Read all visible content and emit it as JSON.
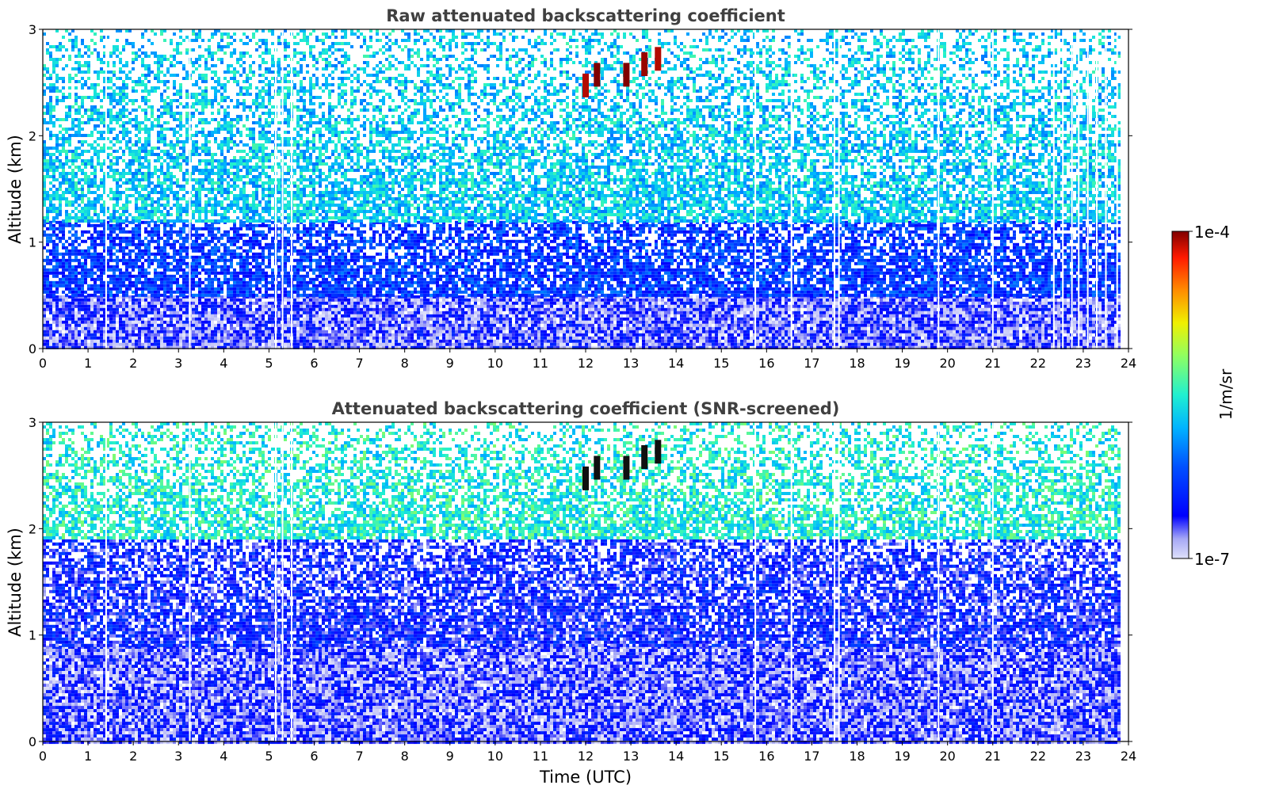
{
  "figure": {
    "xlabel": "Time (UTC)",
    "colorbar": {
      "label": "1/m/sr",
      "tick_max": "1e-4",
      "tick_min": "1e-7"
    }
  },
  "chart_data": [
    {
      "type": "heatmap",
      "title": "Raw attenuated backscattering coefficient",
      "xlabel": "",
      "ylabel": "Altitude (km)",
      "xlim": [
        0,
        24
      ],
      "ylim": [
        0,
        3
      ],
      "x_ticks": [
        "0",
        "1",
        "2",
        "3",
        "4",
        "5",
        "6",
        "7",
        "8",
        "9",
        "10",
        "11",
        "12",
        "13",
        "14",
        "15",
        "16",
        "17",
        "18",
        "19",
        "20",
        "21",
        "22",
        "23",
        "24"
      ],
      "y_ticks": [
        "0",
        "1",
        "2",
        "3"
      ],
      "color_scale": {
        "type": "log",
        "min": 1e-07,
        "max": 0.0001,
        "unit": "1/m/sr",
        "colormap": "jet"
      },
      "layers": [
        {
          "altitude_range_km": [
            0,
            0.5
          ],
          "typical_value": 2e-07
        },
        {
          "altitude_range_km": [
            0.5,
            1.2
          ],
          "typical_value": 5e-07
        },
        {
          "altitude_range_km": [
            1.2,
            3.0
          ],
          "typical_value": 2e-06
        }
      ],
      "features": [
        {
          "time_utc": 12.0,
          "altitude_km": 2.45,
          "value": 8e-05
        },
        {
          "time_utc": 12.25,
          "altitude_km": 2.55,
          "value": 0.0001
        },
        {
          "time_utc": 12.9,
          "altitude_km": 2.55,
          "value": 0.0001
        },
        {
          "time_utc": 13.3,
          "altitude_km": 2.65,
          "value": 9e-05
        },
        {
          "time_utc": 13.6,
          "altitude_km": 2.7,
          "value": 8e-05
        }
      ],
      "gaps_utc": [
        1.4,
        3.25,
        5.15,
        5.3,
        5.5,
        15.75,
        16.55,
        17.5,
        17.6,
        19.8,
        21.0,
        22.35,
        22.55,
        22.75,
        22.9,
        23.1,
        23.3,
        23.5,
        23.75
      ]
    },
    {
      "type": "heatmap",
      "title": "Attenuated backscattering coefficient (SNR-screened)",
      "xlabel": "Time (UTC)",
      "ylabel": "Altitude (km)",
      "xlim": [
        0,
        24
      ],
      "ylim": [
        0,
        3
      ],
      "x_ticks": [
        "0",
        "1",
        "2",
        "3",
        "4",
        "5",
        "6",
        "7",
        "8",
        "9",
        "10",
        "11",
        "12",
        "13",
        "14",
        "15",
        "16",
        "17",
        "18",
        "19",
        "20",
        "21",
        "22",
        "23",
        "24"
      ],
      "y_ticks": [
        "0",
        "1",
        "2",
        "3"
      ],
      "color_scale": {
        "type": "log",
        "min": 1e-07,
        "max": 0.0001,
        "unit": "1/m/sr",
        "colormap": "jet"
      },
      "layers": [
        {
          "altitude_range_km": [
            0,
            0.9
          ],
          "typical_value": 2e-07
        },
        {
          "altitude_range_km": [
            0.9,
            1.9
          ],
          "typical_value": 3e-07
        },
        {
          "altitude_range_km": [
            1.9,
            3.0
          ],
          "typical_value": 3e-06
        }
      ],
      "features": [
        {
          "time_utc": 12.0,
          "altitude_km": 2.45,
          "value": 0.0001
        },
        {
          "time_utc": 12.25,
          "altitude_km": 2.55,
          "value": 0.0001
        },
        {
          "time_utc": 12.9,
          "altitude_km": 2.55,
          "value": 0.0001
        },
        {
          "time_utc": 13.3,
          "altitude_km": 2.65,
          "value": 0.0001
        },
        {
          "time_utc": 13.6,
          "altitude_km": 2.7,
          "value": 0.0001
        }
      ],
      "gaps_utc": [
        1.4,
        3.25,
        5.15,
        5.3,
        5.5,
        15.75,
        16.55,
        17.5,
        17.6,
        19.8,
        21.0
      ]
    }
  ]
}
